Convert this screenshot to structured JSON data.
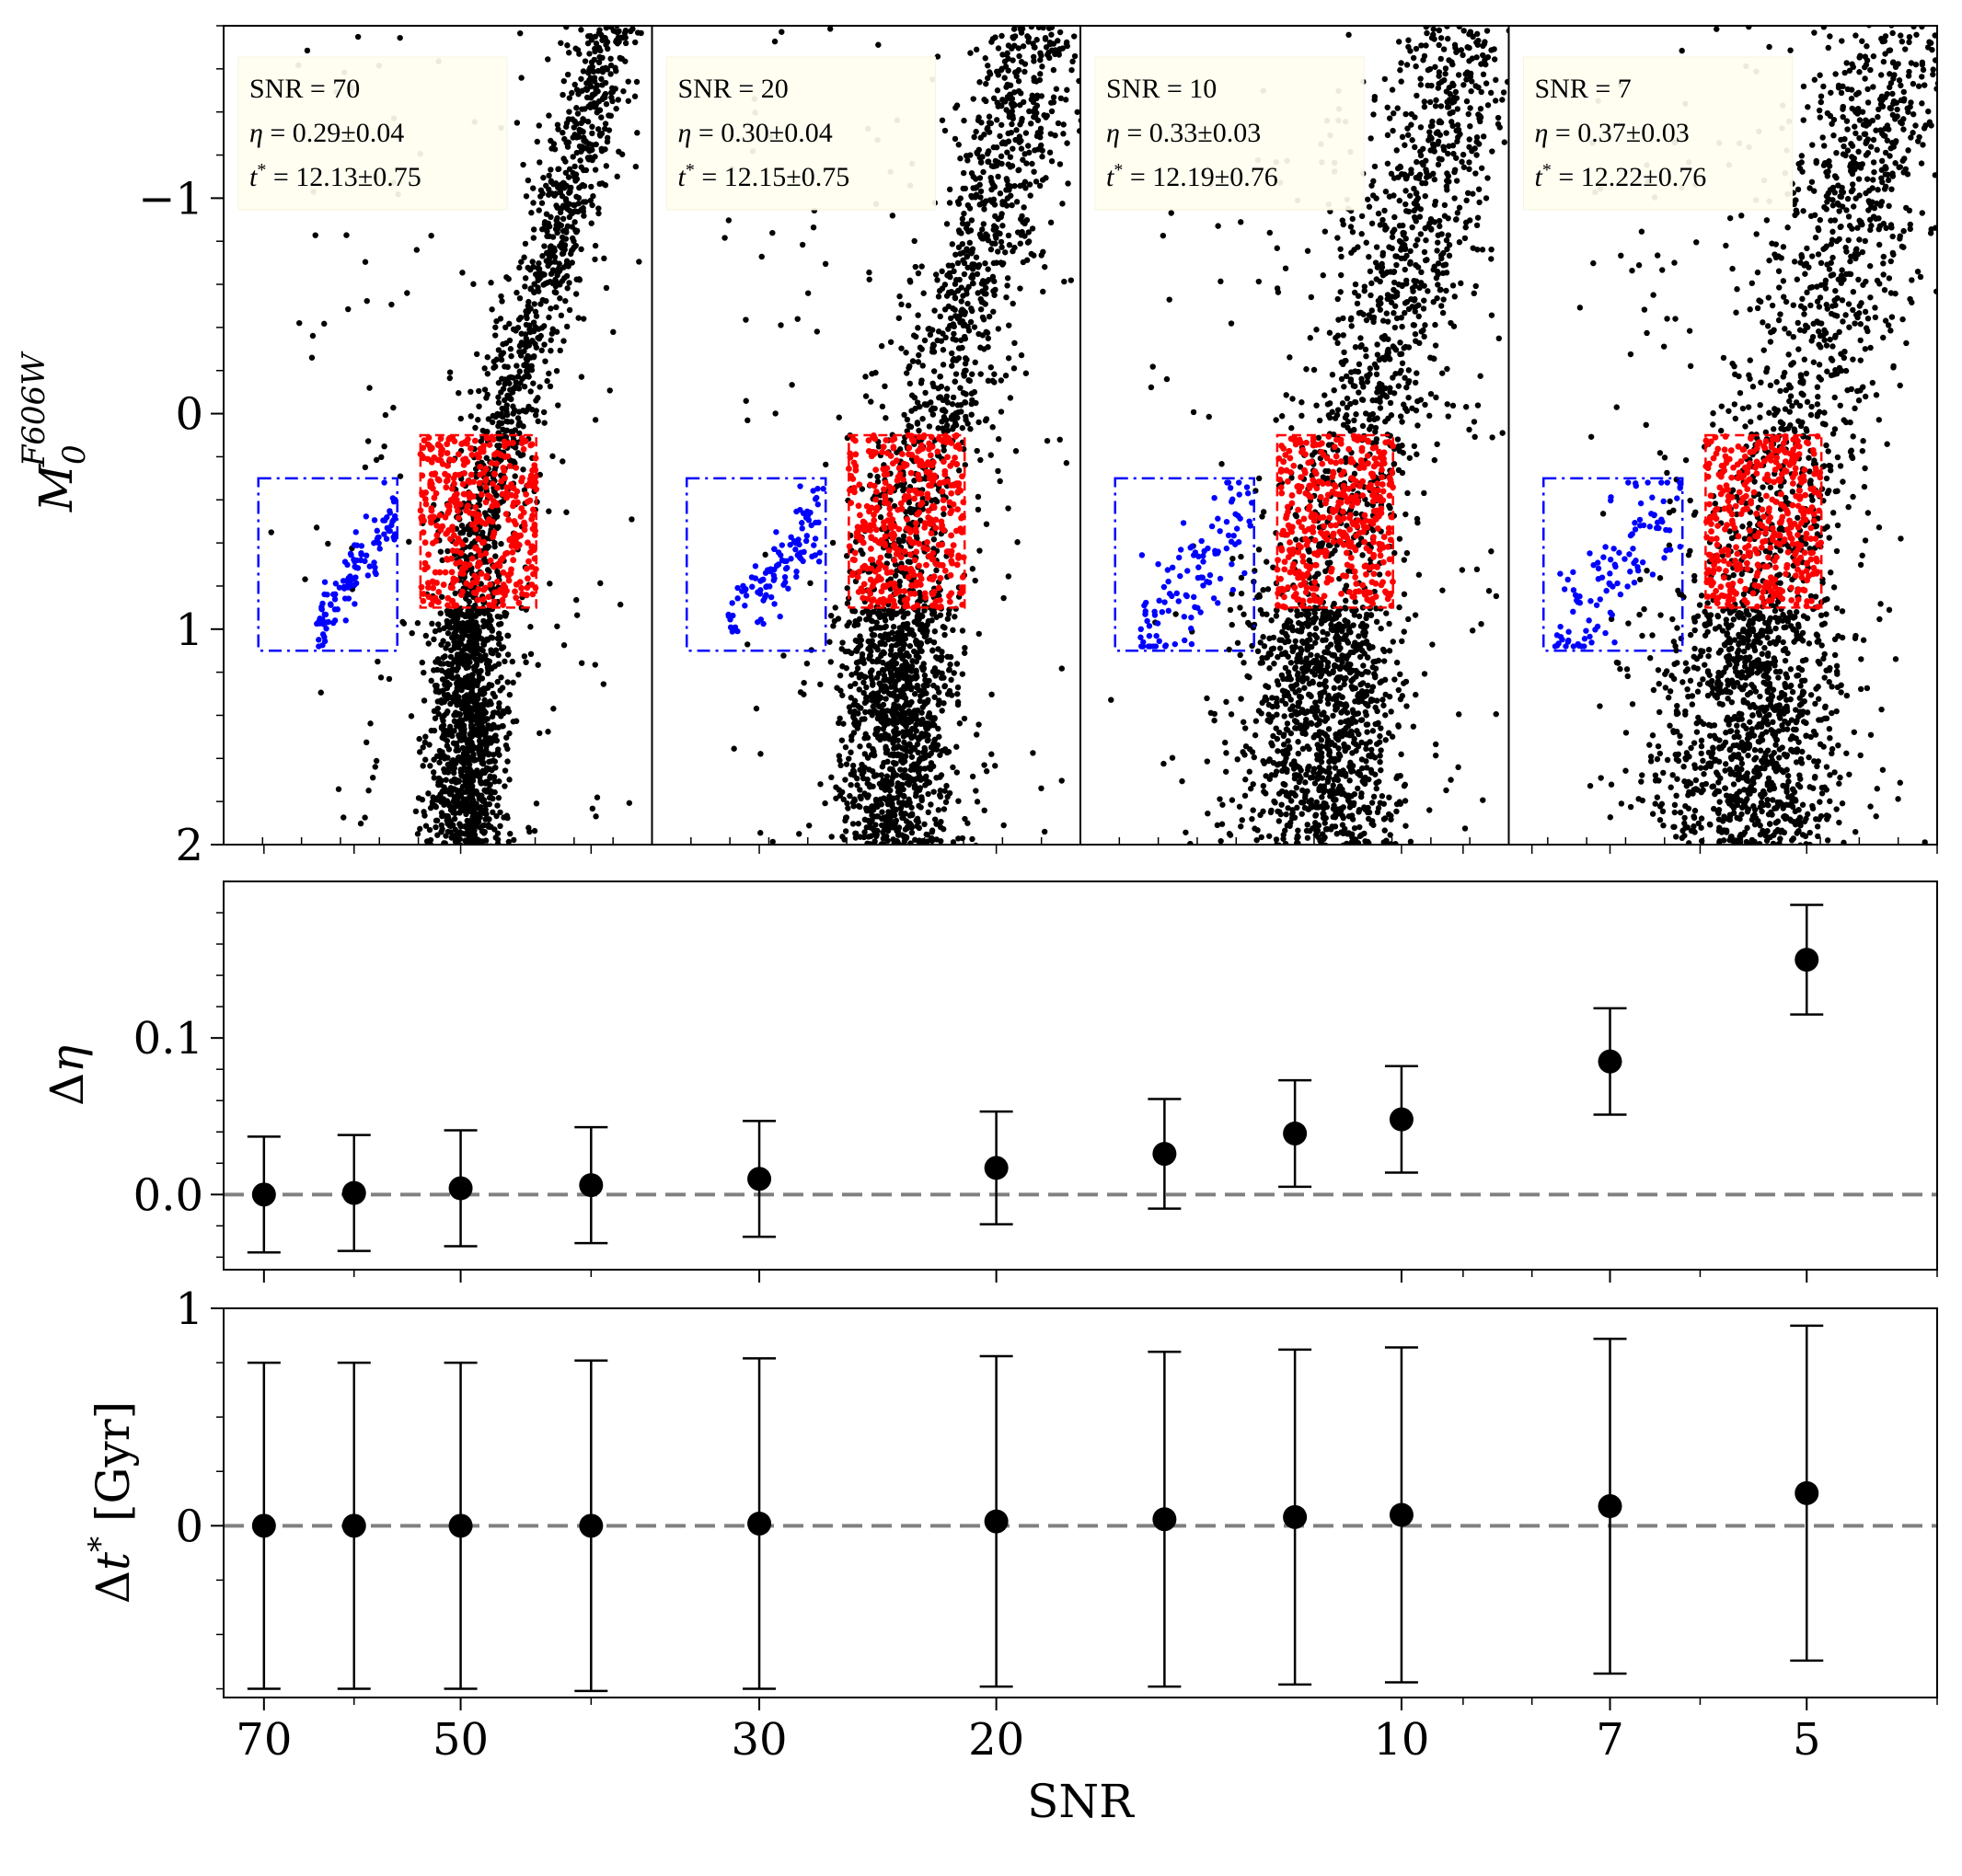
{
  "chart_data": [
    {
      "type": "scatter",
      "ylabel_main": "M",
      "ylabel_sub": "0",
      "ylabel_sup": "F606W",
      "ylim": [
        2,
        -1.8
      ],
      "yticks": [
        {
          "value": -1,
          "label": "−1"
        },
        {
          "value": 0,
          "label": "0"
        },
        {
          "value": 1,
          "label": "1"
        },
        {
          "value": 2,
          "label": "2"
        }
      ],
      "blue_box": {
        "color_range": [
          0.15,
          0.75
        ],
        "mag_range": [
          0.3,
          1.1
        ]
      },
      "red_box": {
        "color_range": [
          0.85,
          1.35
        ],
        "mag_range": [
          0.1,
          0.9
        ]
      },
      "colors": {
        "rgb": "#000000",
        "bhb": "#0000ff",
        "rhb": "#ff0000",
        "box_fill": "#fffef0",
        "box_edge": "#f5f5dc"
      },
      "panels": [
        {
          "snr": 70,
          "lines": [
            {
              "prefix": "SNR = 70",
              "sym": "",
              "rest": ""
            },
            {
              "prefix": "",
              "sym": "η",
              "rest": " = 0.29±0.04"
            },
            {
              "prefix": "",
              "sym": "t",
              "sup": "*",
              "rest": " = 12.13±0.75"
            }
          ]
        },
        {
          "snr": 20,
          "lines": [
            {
              "prefix": "SNR = 20",
              "sym": "",
              "rest": ""
            },
            {
              "prefix": "",
              "sym": "η",
              "rest": " = 0.30±0.04"
            },
            {
              "prefix": "",
              "sym": "t",
              "sup": "*",
              "rest": " = 12.15±0.75"
            }
          ]
        },
        {
          "snr": 10,
          "lines": [
            {
              "prefix": "SNR = 10",
              "sym": "",
              "rest": ""
            },
            {
              "prefix": "",
              "sym": "η",
              "rest": " = 0.33±0.03"
            },
            {
              "prefix": "",
              "sym": "t",
              "sup": "*",
              "rest": " = 12.19±0.76"
            }
          ]
        },
        {
          "snr": 7,
          "lines": [
            {
              "prefix": "SNR = 7",
              "sym": "",
              "rest": ""
            },
            {
              "prefix": "",
              "sym": "η",
              "rest": " = 0.37±0.03"
            },
            {
              "prefix": "",
              "sym": "t",
              "sup": "*",
              "rest": " = 12.22±0.76"
            }
          ]
        }
      ]
    },
    {
      "type": "scatter",
      "ylabel": "Δη",
      "ylim": [
        -0.048,
        0.2
      ],
      "yticks": [
        {
          "value": 0.0,
          "label": "0.0"
        },
        {
          "value": 0.1,
          "label": "0.1"
        }
      ],
      "x": [
        70,
        60,
        50,
        40,
        30,
        20,
        15,
        12,
        10,
        7,
        5
      ],
      "y": [
        0.0,
        0.001,
        0.004,
        0.006,
        0.01,
        0.017,
        0.026,
        0.039,
        0.048,
        0.085,
        0.15
      ],
      "err": [
        0.037,
        0.037,
        0.037,
        0.037,
        0.037,
        0.036,
        0.035,
        0.034,
        0.034,
        0.034,
        0.035
      ],
      "reference_line": 0
    },
    {
      "type": "scatter",
      "ylabel": "Δt* [Gyr]",
      "ylim": [
        -0.79,
        1.0
      ],
      "yticks": [
        {
          "value": 0,
          "label": "0"
        },
        {
          "value": 1,
          "label": "1"
        }
      ],
      "x": [
        70,
        60,
        50,
        40,
        30,
        20,
        15,
        12,
        10,
        7,
        5
      ],
      "y": [
        0.0,
        0.0,
        0.0,
        0.0,
        0.01,
        0.02,
        0.03,
        0.04,
        0.05,
        0.09,
        0.15
      ],
      "err": [
        0.75,
        0.75,
        0.75,
        0.76,
        0.76,
        0.76,
        0.77,
        0.77,
        0.77,
        0.77,
        0.77
      ],
      "reference_line": 0,
      "xlabel": "SNR",
      "xscale": "log",
      "xlim": [
        75,
        4
      ],
      "xticks": [
        70,
        50,
        30,
        20,
        10,
        7,
        5
      ]
    }
  ]
}
